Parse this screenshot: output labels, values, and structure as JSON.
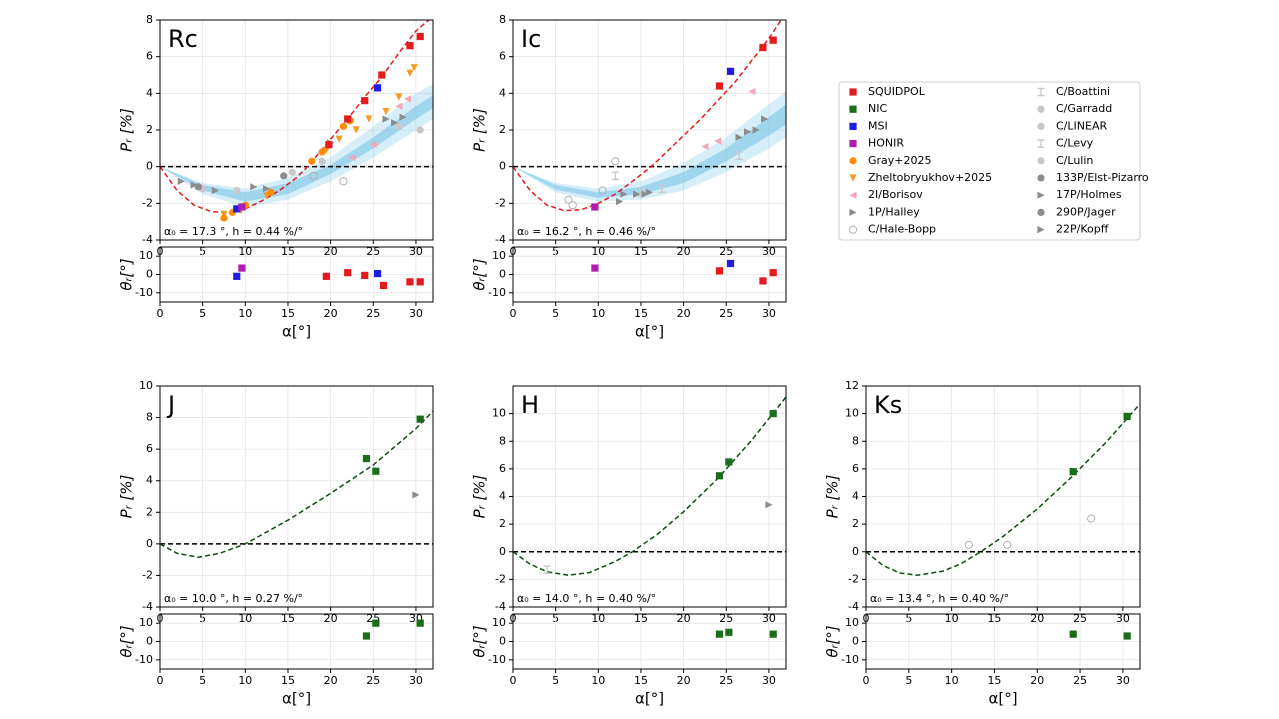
{
  "chart_data": [
    {
      "type": "scatter",
      "title": "Rc",
      "ylabel": "Pᵣ [%]",
      "annotation": "α₀ = 17.3 °, h = 0.44 %/°",
      "xlim": [
        0,
        32
      ],
      "xticks": [
        0,
        5,
        10,
        15,
        20,
        25,
        30
      ],
      "ylim": [
        -4,
        8
      ],
      "yticks": [
        -4,
        -2,
        0,
        2,
        4,
        6,
        8
      ],
      "grid": true,
      "zero_line": true,
      "bands": [
        {
          "color": "#87ceeb",
          "opacity": 0.35,
          "x": [
            0,
            5,
            10,
            15,
            20,
            25,
            30,
            32
          ],
          "lower": [
            0,
            -1.5,
            -2.2,
            -1.8,
            -0.8,
            0.5,
            2,
            2.6
          ],
          "upper": [
            0,
            -0.9,
            -1.2,
            -0.6,
            0.5,
            2.2,
            4,
            4.5
          ]
        },
        {
          "color": "#5fb8e0",
          "opacity": 0.45,
          "x": [
            0,
            5,
            10,
            15,
            20,
            25,
            30,
            32
          ],
          "lower": [
            0,
            -1.3,
            -1.9,
            -1.5,
            -0.4,
            1.0,
            2.6,
            3.2
          ],
          "upper": [
            0,
            -1.0,
            -1.4,
            -0.9,
            0.1,
            1.6,
            3.3,
            3.9
          ]
        }
      ],
      "fit": {
        "color": "#e41a1c",
        "x": [
          0,
          2,
          4,
          6,
          8,
          10,
          12,
          14,
          16,
          17.3,
          20,
          22,
          24,
          26,
          28,
          30,
          31.5
        ],
        "values": [
          0,
          -1.3,
          -2.1,
          -2.45,
          -2.5,
          -2.3,
          -1.85,
          -1.3,
          -0.6,
          0,
          1.5,
          2.6,
          3.8,
          4.9,
          6.2,
          7.4,
          8.0
        ]
      },
      "series": [
        {
          "name": "1P/Halley",
          "x": [
            2.5,
            4,
            6.5,
            11,
            12.5,
            20,
            26.5
          ],
          "values": [
            -0.8,
            -1.0,
            -1.3,
            -1.1,
            -1.2,
            1.3,
            2.6
          ]
        },
        {
          "name": "C/Hale-Bopp",
          "x": [
            18,
            21.5
          ],
          "values": [
            -0.5,
            -0.8
          ]
        },
        {
          "name": "C/Lulin",
          "x": [
            5,
            9,
            15.5,
            19,
            28,
            30.5
          ],
          "values": [
            -1.2,
            -1.3,
            -0.3,
            0.3,
            2.2,
            2.0
          ]
        },
        {
          "name": "133P/Elst-Pizarro",
          "x": [
            4.5,
            14.5
          ],
          "values": [
            -1.1,
            -0.5
          ]
        },
        {
          "name": "22P/Kopff",
          "x": [
            27.5,
            28.5
          ],
          "values": [
            2.4,
            2.7
          ]
        },
        {
          "name": "2I/Borisov",
          "x": [
            22.5,
            25,
            28,
            29
          ],
          "values": [
            0.5,
            1.2,
            3.3,
            3.7
          ]
        },
        {
          "name": "Zheltobryukhov+2025",
          "x": [
            7.5,
            9.5,
            12.5,
            19.5,
            21,
            23,
            24.5,
            26.5,
            28,
            29.3,
            29.8
          ],
          "values": [
            -2.6,
            -2.4,
            -1.6,
            0.9,
            1.5,
            2.0,
            2.6,
            3.0,
            3.8,
            5.1,
            5.4
          ]
        },
        {
          "name": "Gray+2025",
          "x": [
            7.5,
            8.5,
            10,
            13,
            17.8,
            19,
            21.5,
            22.3
          ],
          "values": [
            -2.8,
            -2.5,
            -2.1,
            -1.4,
            0.3,
            0.8,
            2.2,
            2.5
          ]
        },
        {
          "name": "MSI",
          "x": [
            9,
            25.5
          ],
          "values": [
            -2.3,
            4.3
          ]
        },
        {
          "name": "HONIR",
          "x": [
            9.6
          ],
          "values": [
            -2.2
          ]
        },
        {
          "name": "SQUIDPOL",
          "x": [
            19.8,
            22,
            24,
            26,
            29.3,
            30.5
          ],
          "values": [
            1.2,
            2.6,
            3.6,
            5.0,
            6.6,
            7.1
          ]
        }
      ]
    },
    {
      "type": "scatter",
      "ylabel": "θᵣ[°]",
      "xlabel": "α[°]",
      "xlim": [
        0,
        32
      ],
      "xticks": [
        0,
        5,
        10,
        15,
        20,
        25,
        30
      ],
      "ylim": [
        -15,
        15
      ],
      "yticks": [
        -10,
        0,
        10
      ],
      "grid": true,
      "series": [
        {
          "name": "MSI",
          "x": [
            9,
            25.5
          ],
          "values": [
            -1,
            0.5
          ]
        },
        {
          "name": "HONIR",
          "x": [
            9.6
          ],
          "values": [
            3.5
          ]
        },
        {
          "name": "SQUIDPOL",
          "x": [
            19.5,
            22,
            24,
            26.2,
            29.3,
            30.5
          ],
          "values": [
            -1,
            1,
            -0.5,
            -6,
            -4,
            -4
          ]
        }
      ]
    },
    {
      "type": "scatter",
      "title": "Ic",
      "ylabel": "Pᵣ [%]",
      "annotation": "α₀ = 16.2 °, h = 0.46 %/°",
      "xlim": [
        0,
        32
      ],
      "xticks": [
        0,
        5,
        10,
        15,
        20,
        25,
        30
      ],
      "ylim": [
        -4,
        8
      ],
      "yticks": [
        -4,
        -2,
        0,
        2,
        4,
        6,
        8
      ],
      "grid": true,
      "zero_line": true,
      "bands": [
        {
          "color": "#87ceeb",
          "opacity": 0.35,
          "x": [
            0,
            5,
            10,
            15,
            20,
            25,
            30,
            32
          ],
          "lower": [
            0,
            -1.4,
            -1.9,
            -1.8,
            -1.3,
            -0.3,
            1.0,
            1.6
          ],
          "upper": [
            0,
            -0.9,
            -1.2,
            -0.8,
            0.2,
            1.6,
            3.4,
            4.1
          ]
        },
        {
          "color": "#5fb8e0",
          "opacity": 0.45,
          "x": [
            0,
            5,
            10,
            15,
            20,
            25,
            30,
            32
          ],
          "lower": [
            0,
            -1.25,
            -1.7,
            -1.5,
            -0.9,
            0.3,
            1.7,
            2.3
          ],
          "upper": [
            0,
            -1.0,
            -1.4,
            -1.1,
            -0.3,
            1.0,
            2.7,
            3.4
          ]
        }
      ],
      "fit": {
        "color": "#e41a1c",
        "x": [
          0,
          2,
          4,
          6,
          8,
          10,
          12,
          14,
          16.2,
          18,
          20,
          22,
          24,
          26,
          28,
          30,
          32
        ],
        "values": [
          0,
          -1.3,
          -2.1,
          -2.4,
          -2.35,
          -2.0,
          -1.5,
          -0.8,
          0,
          0.8,
          1.7,
          2.6,
          3.6,
          4.6,
          5.8,
          7.0,
          8.4
        ]
      },
      "series": [
        {
          "name": "C/Hale-Bopp",
          "x": [
            6.5,
            7,
            10.5,
            12
          ],
          "values": [
            -1.8,
            -2.1,
            -1.3,
            0.3
          ]
        },
        {
          "name": "C/Boattini",
          "x": [
            12,
            15,
            17.5,
            26.5
          ],
          "values": [
            -0.5,
            -1.4,
            -1.2,
            0.6
          ]
        },
        {
          "name": "22P/Kopff",
          "x": [
            13,
            14.5,
            15.5,
            16,
            27.5,
            28.5,
            29.5
          ],
          "values": [
            -1.5,
            -1.5,
            -1.5,
            -1.4,
            1.9,
            2.0,
            2.6
          ]
        },
        {
          "name": "1P/Halley",
          "x": [
            12.5,
            26.5
          ],
          "values": [
            -1.9,
            1.6
          ]
        },
        {
          "name": "2I/Borisov",
          "x": [
            22.5,
            24,
            28
          ],
          "values": [
            1.1,
            1.4,
            4.1
          ]
        },
        {
          "name": "HONIR",
          "x": [
            9.6
          ],
          "values": [
            -2.2
          ]
        },
        {
          "name": "MSI",
          "x": [
            25.5
          ],
          "values": [
            5.2
          ]
        },
        {
          "name": "SQUIDPOL",
          "x": [
            24.2,
            29.3,
            30.5
          ],
          "values": [
            4.4,
            6.5,
            6.9
          ]
        }
      ]
    },
    {
      "type": "scatter",
      "ylabel": "θᵣ[°]",
      "xlabel": "α[°]",
      "xlim": [
        0,
        32
      ],
      "xticks": [
        0,
        5,
        10,
        15,
        20,
        25,
        30
      ],
      "ylim": [
        -15,
        15
      ],
      "yticks": [
        -10,
        0,
        10
      ],
      "grid": true,
      "series": [
        {
          "name": "HONIR",
          "x": [
            9.6
          ],
          "values": [
            3.5
          ]
        },
        {
          "name": "MSI",
          "x": [
            25.5
          ],
          "values": [
            6
          ]
        },
        {
          "name": "SQUIDPOL",
          "x": [
            24.2,
            29.3,
            30.5
          ],
          "values": [
            2,
            -3.5,
            1
          ]
        }
      ]
    },
    {
      "type": "scatter",
      "title": "J",
      "ylabel": "Pᵣ [%]",
      "annotation": "α₀ = 10.0 °, h = 0.27 %/°",
      "xlim": [
        0,
        32
      ],
      "xticks": [
        0,
        5,
        10,
        15,
        20,
        25,
        30
      ],
      "ylim": [
        -4,
        10
      ],
      "yticks": [
        -4,
        -2,
        0,
        2,
        4,
        6,
        8,
        10
      ],
      "grid": true,
      "zero_line": true,
      "fit": {
        "color": "#0b4d0b",
        "x": [
          0,
          2,
          4.5,
          7,
          10,
          15,
          20,
          25,
          30,
          32
        ],
        "values": [
          0,
          -0.6,
          -0.85,
          -0.6,
          0,
          1.5,
          3.2,
          5.0,
          7.3,
          8.4
        ]
      },
      "series": [
        {
          "name": "22P/Kopff",
          "x": [
            30
          ],
          "values": [
            3.1
          ]
        },
        {
          "name": "NIC",
          "x": [
            24.2,
            25.3,
            30.5
          ],
          "values": [
            5.4,
            4.6,
            7.9
          ]
        }
      ]
    },
    {
      "type": "scatter",
      "ylabel": "θᵣ[°]",
      "xlabel": "α[°]",
      "xlim": [
        0,
        32
      ],
      "xticks": [
        0,
        5,
        10,
        15,
        20,
        25,
        30
      ],
      "ylim": [
        -15,
        15
      ],
      "yticks": [
        -10,
        0,
        10
      ],
      "grid": true,
      "series": [
        {
          "name": "NIC",
          "x": [
            24.2,
            25.3,
            30.5
          ],
          "values": [
            3,
            10,
            10
          ]
        }
      ]
    },
    {
      "type": "scatter",
      "title": "H",
      "ylabel": "Pᵣ [%]",
      "annotation": "α₀ = 14.0 °, h = 0.40 %/°",
      "xlim": [
        0,
        32
      ],
      "xticks": [
        0,
        5,
        10,
        15,
        20,
        25,
        30
      ],
      "ylim": [
        -4,
        12
      ],
      "yticks": [
        -4,
        -2,
        0,
        2,
        4,
        6,
        8,
        10
      ],
      "grid": true,
      "zero_line": true,
      "fit": {
        "color": "#0b4d0b",
        "x": [
          0,
          2,
          4,
          6.5,
          9,
          12,
          14,
          17,
          20,
          24,
          28,
          32
        ],
        "values": [
          0,
          -0.9,
          -1.45,
          -1.7,
          -1.5,
          -0.7,
          0,
          1.3,
          2.9,
          5.3,
          8.1,
          11.2
        ]
      },
      "series": [
        {
          "name": "C/Boattini",
          "x": [
            4
          ],
          "values": [
            -1.3
          ]
        },
        {
          "name": "22P/Kopff",
          "x": [
            30
          ],
          "values": [
            3.4
          ]
        },
        {
          "name": "NIC",
          "x": [
            24.2,
            25.3,
            30.5
          ],
          "values": [
            5.5,
            6.5,
            10
          ]
        }
      ]
    },
    {
      "type": "scatter",
      "ylabel": "θᵣ[°]",
      "xlabel": "α[°]",
      "xlim": [
        0,
        32
      ],
      "xticks": [
        0,
        5,
        10,
        15,
        20,
        25,
        30
      ],
      "ylim": [
        -15,
        15
      ],
      "yticks": [
        -10,
        0,
        10
      ],
      "grid": true,
      "series": [
        {
          "name": "NIC",
          "x": [
            24.2,
            25.3,
            30.5
          ],
          "values": [
            4,
            5,
            4
          ]
        }
      ]
    },
    {
      "type": "scatter",
      "title": "Ks",
      "ylabel": "Pᵣ [%]",
      "annotation": "α₀ = 13.4 °, h = 0.40 %/°",
      "xlim": [
        0,
        32
      ],
      "xticks": [
        0,
        5,
        10,
        15,
        20,
        25,
        30
      ],
      "ylim": [
        -4,
        12
      ],
      "yticks": [
        -4,
        -2,
        0,
        2,
        4,
        6,
        8,
        10,
        12
      ],
      "grid": true,
      "zero_line": true,
      "fit": {
        "color": "#0b4d0b",
        "x": [
          0,
          2,
          4,
          6,
          9,
          11,
          13.4,
          16,
          20,
          24,
          28,
          32
        ],
        "values": [
          0,
          -1.0,
          -1.55,
          -1.7,
          -1.4,
          -0.9,
          0,
          1.1,
          3.1,
          5.4,
          7.9,
          10.7
        ]
      },
      "series": [
        {
          "name": "C/Hale-Bopp",
          "x": [
            12,
            16.5,
            26.3
          ],
          "values": [
            0.5,
            0.5,
            2.4
          ]
        },
        {
          "name": "NIC",
          "x": [
            24.2,
            30.5
          ],
          "values": [
            5.8,
            9.8
          ]
        }
      ]
    },
    {
      "type": "scatter",
      "ylabel": "θᵣ[°]",
      "xlabel": "α[°]",
      "xlim": [
        0,
        32
      ],
      "xticks": [
        0,
        5,
        10,
        15,
        20,
        25,
        30
      ],
      "ylim": [
        -15,
        15
      ],
      "yticks": [
        -10,
        0,
        10
      ],
      "grid": true,
      "series": [
        {
          "name": "NIC",
          "x": [
            24.2,
            30.5
          ],
          "values": [
            4,
            3
          ]
        }
      ]
    },
    {
      "type": "legend",
      "series": [
        {
          "name": "SQUIDPOL",
          "color": "#e41a1c",
          "marker": "square"
        },
        {
          "name": "NIC",
          "color": "#1a6e1a",
          "marker": "square"
        },
        {
          "name": "MSI",
          "color": "#1c1ce6",
          "marker": "square"
        },
        {
          "name": "HONIR",
          "color": "#b21bb2",
          "marker": "square"
        },
        {
          "name": "Gray+2025",
          "color": "#ff8c00",
          "marker": "circle"
        },
        {
          "name": "Zheltobryukhov+2025",
          "color": "#f59a23",
          "marker": "tri-down"
        },
        {
          "name": "2I/Borisov",
          "color": "#f4a6b8",
          "marker": "tri-left"
        },
        {
          "name": "1P/Halley",
          "color": "#8c8c8c",
          "marker": "tri-right"
        },
        {
          "name": "C/Hale-Bopp",
          "color": "#b0b0b0",
          "marker": "open"
        },
        {
          "name": "C/Boattini",
          "color": "#c8c8c8",
          "marker": "bar"
        },
        {
          "name": "C/Garradd",
          "color": "#c8c8c8",
          "marker": "circle"
        },
        {
          "name": "C/LINEAR",
          "color": "#c8c8c8",
          "marker": "circle"
        },
        {
          "name": "C/Levy",
          "color": "#c8c8c8",
          "marker": "bar"
        },
        {
          "name": "C/Lulin",
          "color": "#c8c8c8",
          "marker": "circle"
        },
        {
          "name": "133P/Elst-Pizarro",
          "color": "#8c8c8c",
          "marker": "circle"
        },
        {
          "name": "17P/Holmes",
          "color": "#8c8c8c",
          "marker": "tri-right"
        },
        {
          "name": "290P/Jager",
          "color": "#8c8c8c",
          "marker": "circle"
        },
        {
          "name": "22P/Kopff",
          "color": "#8c8c8c",
          "marker": "tri-right"
        }
      ]
    }
  ]
}
